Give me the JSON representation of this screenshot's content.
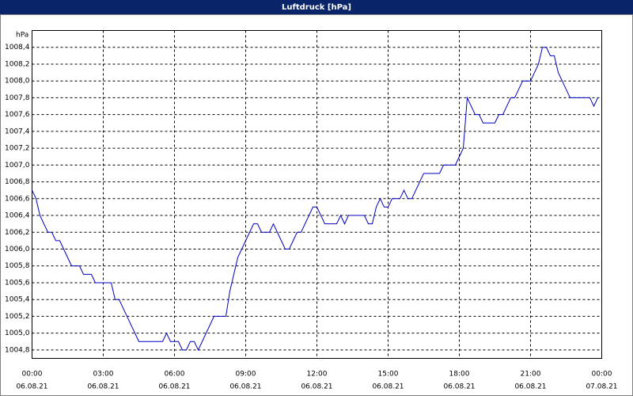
{
  "chart_data": {
    "type": "line",
    "title": "Luftdruck [hPa]",
    "y_label": "hPa",
    "x": [
      0,
      10,
      20,
      40,
      50,
      60,
      70,
      80,
      90,
      100,
      120,
      130,
      150,
      160,
      200,
      210,
      220,
      230,
      240,
      250,
      260,
      270,
      330,
      340,
      350,
      370,
      380,
      390,
      400,
      410,
      420,
      430,
      440,
      450,
      460,
      490,
      500,
      510,
      520,
      530,
      540,
      550,
      560,
      570,
      580,
      600,
      610,
      620,
      630,
      640,
      650,
      660,
      670,
      680,
      690,
      700,
      710,
      720,
      730,
      740,
      770,
      780,
      790,
      800,
      840,
      850,
      860,
      870,
      880,
      890,
      900,
      910,
      930,
      940,
      950,
      960,
      970,
      980,
      990,
      1030,
      1040,
      1070,
      1080,
      1090,
      1100,
      1110,
      1120,
      1130,
      1140,
      1170,
      1180,
      1190,
      1200,
      1210,
      1220,
      1230,
      1240,
      1260,
      1270,
      1280,
      1290,
      1300,
      1310,
      1320,
      1330,
      1340,
      1350,
      1360,
      1410,
      1420,
      1430
    ],
    "series": [
      {
        "name": "Luftdruck",
        "color": "#0000c0",
        "values": [
          1006.7,
          1006.6,
          1006.4,
          1006.2,
          1006.2,
          1006.1,
          1006.1,
          1006.0,
          1005.9,
          1005.8,
          1005.8,
          1005.7,
          1005.7,
          1005.6,
          1005.6,
          1005.4,
          1005.4,
          1005.3,
          1005.2,
          1005.1,
          1005.0,
          1004.9,
          1004.9,
          1005.0,
          1004.9,
          1004.9,
          1004.8,
          1004.8,
          1004.9,
          1004.9,
          1004.8,
          1004.9,
          1005.0,
          1005.1,
          1005.2,
          1005.2,
          1005.5,
          1005.7,
          1005.9,
          1006.0,
          1006.1,
          1006.2,
          1006.3,
          1006.3,
          1006.2,
          1006.2,
          1006.3,
          1006.2,
          1006.1,
          1006.0,
          1006.0,
          1006.1,
          1006.2,
          1006.2,
          1006.3,
          1006.4,
          1006.5,
          1006.5,
          1006.4,
          1006.3,
          1006.3,
          1006.4,
          1006.3,
          1006.4,
          1006.4,
          1006.3,
          1006.3,
          1006.5,
          1006.6,
          1006.5,
          1006.5,
          1006.6,
          1006.6,
          1006.7,
          1006.6,
          1006.6,
          1006.7,
          1006.8,
          1006.9,
          1006.9,
          1007.0,
          1007.0,
          1007.1,
          1007.2,
          1007.8,
          1007.7,
          1007.6,
          1007.6,
          1007.5,
          1007.5,
          1007.6,
          1007.6,
          1007.7,
          1007.8,
          1007.8,
          1007.9,
          1008.0,
          1008.0,
          1008.1,
          1008.2,
          1008.4,
          1008.4,
          1008.3,
          1008.3,
          1008.1,
          1008.0,
          1007.9,
          1007.8,
          1007.8,
          1007.7,
          1007.8
        ]
      }
    ],
    "xlim": [
      0,
      1440
    ],
    "xticks": [
      {
        "value": 0,
        "label": "00:00"
      },
      {
        "value": 180,
        "label": "03:00"
      },
      {
        "value": 360,
        "label": "06:00"
      },
      {
        "value": 540,
        "label": "09:00"
      },
      {
        "value": 720,
        "label": "12:00"
      },
      {
        "value": 900,
        "label": "15:00"
      },
      {
        "value": 1080,
        "label": "18:00"
      },
      {
        "value": 1260,
        "label": "21:00"
      },
      {
        "value": 1440,
        "label": "00:00"
      }
    ],
    "xtick_dates": [
      "06.08.21",
      "06.08.21",
      "06.08.21",
      "06.08.21",
      "06.08.21",
      "06.08.21",
      "06.08.21",
      "06.08.21",
      "07.08.21"
    ],
    "ylim": [
      1004.7,
      1008.6
    ],
    "yticks": [
      {
        "value": 1004.8,
        "label": "1004,8"
      },
      {
        "value": 1005.0,
        "label": "1005,0"
      },
      {
        "value": 1005.2,
        "label": "1005,2"
      },
      {
        "value": 1005.4,
        "label": "1005,4"
      },
      {
        "value": 1005.6,
        "label": "1005,6"
      },
      {
        "value": 1005.8,
        "label": "1005,8"
      },
      {
        "value": 1006.0,
        "label": "1006,0"
      },
      {
        "value": 1006.2,
        "label": "1006,2"
      },
      {
        "value": 1006.4,
        "label": "1006,4"
      },
      {
        "value": 1006.6,
        "label": "1006,6"
      },
      {
        "value": 1006.8,
        "label": "1006,8"
      },
      {
        "value": 1007.0,
        "label": "1007,0"
      },
      {
        "value": 1007.2,
        "label": "1007,2"
      },
      {
        "value": 1007.4,
        "label": "1007,4"
      },
      {
        "value": 1007.6,
        "label": "1007,6"
      },
      {
        "value": 1007.8,
        "label": "1007,8"
      },
      {
        "value": 1008.0,
        "label": "1008,0"
      },
      {
        "value": 1008.2,
        "label": "1008,2"
      },
      {
        "value": 1008.4,
        "label": "1008,4"
      }
    ],
    "grid": true
  }
}
